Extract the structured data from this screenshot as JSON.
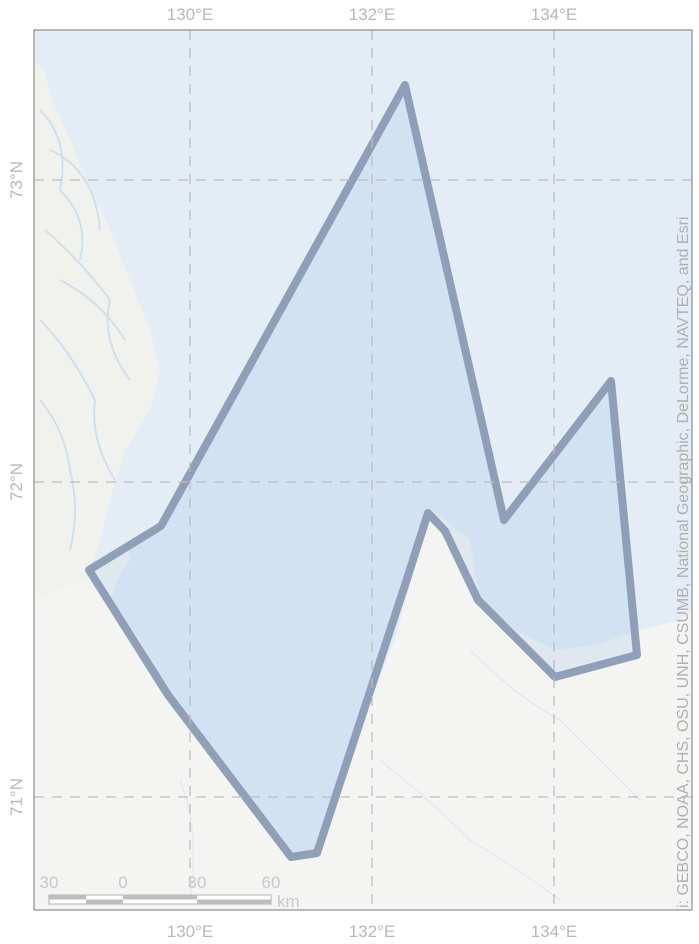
{
  "map": {
    "lon_ticks": [
      "130°E",
      "132°E",
      "134°E"
    ],
    "lat_ticks": [
      "73°N",
      "72°N",
      "71°N"
    ],
    "scale_bar": {
      "labels": [
        "30",
        "0",
        "30",
        "60"
      ],
      "unit": "km"
    },
    "attribution": "i: GEBCO, NOAA, CHS, OSU, UNH, CSUMB, National Geographic, DeLorme, NAVTEQ, and Esri",
    "colors": {
      "sea": "#e4edf5",
      "land": "#f4f4f2",
      "polygon_fill": "#aac6ea",
      "polygon_stroke": "#8a9bb3",
      "grid": "#c4c4c4"
    }
  }
}
